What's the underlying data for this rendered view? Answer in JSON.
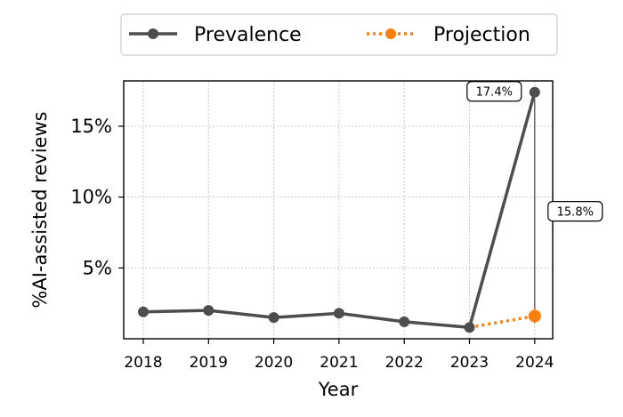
{
  "chart_data": {
    "type": "line",
    "xlabel": "Year",
    "ylabel": "%AI-assisted reviews",
    "categories": [
      "2018",
      "2019",
      "2020",
      "2021",
      "2022",
      "2023",
      "2024"
    ],
    "ylim": [
      0,
      18.2
    ],
    "yticks": [
      5,
      10,
      15
    ],
    "ytick_labels": [
      "5%",
      "10%",
      "15%"
    ],
    "grid": true,
    "legend_position": "top-center",
    "series": [
      {
        "name": "Prevalence",
        "style": "solid",
        "color": "#4d4d4d",
        "x": [
          "2018",
          "2019",
          "2020",
          "2021",
          "2022",
          "2023",
          "2024"
        ],
        "values": [
          1.9,
          2.0,
          1.5,
          1.8,
          1.2,
          0.8,
          17.4
        ]
      },
      {
        "name": "Projection",
        "style": "dotted",
        "color": "#ff7f0e",
        "x": [
          "2023",
          "2024"
        ],
        "values": [
          0.8,
          1.6
        ],
        "error_bar_2024": [
          1.1,
          2.2
        ]
      }
    ],
    "annotations": [
      {
        "text": "17.4%",
        "x": "2024",
        "y": 17.4
      },
      {
        "text": "15.8%",
        "x": "2024",
        "y_from": 1.6,
        "y_to": 17.4
      }
    ]
  }
}
